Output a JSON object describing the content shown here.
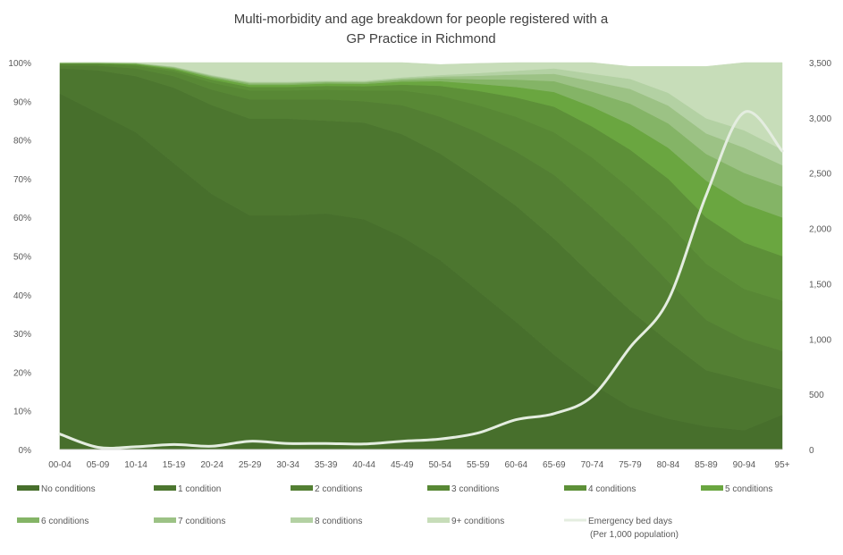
{
  "chart_data": {
    "type": "area",
    "stacked": true,
    "title_lines": [
      "Multi-morbidity and age breakdown for people registered with a",
      "GP Practice in Richmond"
    ],
    "categories": [
      "00-04",
      "05-09",
      "10-14",
      "15-19",
      "20-24",
      "25-29",
      "30-34",
      "35-39",
      "40-44",
      "45-49",
      "50-54",
      "55-59",
      "60-64",
      "65-69",
      "70-74",
      "75-79",
      "80-84",
      "85-89",
      "90-94",
      "95+"
    ],
    "y_left": {
      "min": 0,
      "max": 100,
      "step": 10,
      "format": "percent",
      "tick_labels": [
        "0%",
        "10%",
        "20%",
        "30%",
        "40%",
        "50%",
        "60%",
        "70%",
        "80%",
        "90%",
        "100%"
      ]
    },
    "y_right": {
      "min": 0,
      "max": 3500,
      "step": 500,
      "tick_labels": [
        "0",
        "500",
        "1,000",
        "1,500",
        "2,000",
        "2,500",
        "3,000",
        "3,500"
      ]
    },
    "grid": false,
    "legend_position": "bottom",
    "series": [
      {
        "name": "No conditions",
        "color": "#476f2c",
        "values": [
          92,
          87,
          82,
          74,
          66,
          60.5,
          60.5,
          61,
          59.5,
          55,
          49,
          41,
          33,
          24.5,
          17,
          11,
          8,
          6,
          5,
          9
        ]
      },
      {
        "name": "1 condition",
        "color": "#4c762f",
        "values": [
          6.5,
          11,
          14.5,
          19.5,
          23,
          25,
          25,
          24,
          25,
          26.5,
          27.5,
          29,
          30,
          30,
          28,
          25,
          20,
          14.5,
          13,
          6.5
        ]
      },
      {
        "name": "2 conditions",
        "color": "#537f33",
        "values": [
          0.8,
          1.2,
          2,
          3,
          4,
          5,
          5,
          5.5,
          5.5,
          7.5,
          9.5,
          12,
          14,
          16.5,
          17.5,
          17.5,
          15.5,
          13,
          10.5,
          10
        ]
      },
      {
        "name": "3 conditions",
        "color": "#588835",
        "values": [
          0.4,
          0.4,
          0.7,
          1.2,
          1.8,
          2.3,
          2.3,
          2.5,
          2.8,
          3.8,
          5.5,
          7,
          9,
          11,
          13,
          14,
          15,
          14.5,
          13,
          13
        ]
      },
      {
        "name": "4 conditions",
        "color": "#5d9038",
        "values": [
          0.15,
          0.2,
          0.3,
          0.5,
          0.8,
          0.9,
          0.9,
          1,
          1.1,
          1.5,
          2.5,
          3.7,
          5,
          6.6,
          8,
          10,
          11.5,
          12,
          12,
          11.5
        ]
      },
      {
        "name": "5 conditions",
        "color": "#6aa640",
        "values": [
          0.05,
          0.1,
          0.2,
          0.3,
          0.5,
          0.55,
          0.55,
          0.6,
          0.6,
          0.8,
          1.2,
          1.8,
          2.7,
          3.8,
          5.1,
          6.5,
          8,
          9.5,
          10,
          10
        ]
      },
      {
        "name": "6 conditions",
        "color": "#84b466",
        "values": [
          0.03,
          0.05,
          0.1,
          0.2,
          0.3,
          0.35,
          0.35,
          0.35,
          0.35,
          0.45,
          0.7,
          1.2,
          1.9,
          2.8,
          3.9,
          5.4,
          6.3,
          6.9,
          8,
          8
        ]
      },
      {
        "name": "7 conditions",
        "color": "#9cc285",
        "values": [
          0.02,
          0.03,
          0.1,
          0.2,
          0.2,
          0.25,
          0.25,
          0.2,
          0.2,
          0.35,
          0.5,
          0.9,
          1.3,
          1.9,
          2.7,
          3.8,
          4.6,
          5.3,
          6.5,
          5.5
        ]
      },
      {
        "name": "8 conditions",
        "color": "#b3d1a3",
        "values": [
          0.01,
          0.02,
          0.05,
          0.1,
          0.2,
          0.2,
          0.2,
          0.2,
          0.25,
          0.3,
          0.4,
          0.7,
          1,
          1.4,
          1.9,
          2.6,
          3.3,
          3.9,
          4.5,
          4
        ]
      },
      {
        "name": "9+ conditions",
        "color": "#c7ddb9",
        "values": [
          0.04,
          0,
          0.05,
          1,
          3.2,
          4.95,
          4.95,
          4.65,
          4.7,
          3.8,
          2.7,
          2.5,
          2.1,
          1.5,
          2.9,
          3.2,
          6.8,
          13.4,
          17.5,
          22.5
        ]
      }
    ],
    "line_series": {
      "name": "Emergency bed days",
      "name_sub": "(Per 1,000 population)",
      "axis": "right",
      "color": "#e4ede0",
      "values": [
        140,
        20,
        25,
        45,
        30,
        75,
        55,
        55,
        50,
        75,
        95,
        150,
        270,
        325,
        480,
        925,
        1350,
        2300,
        3050,
        2700
      ]
    }
  }
}
